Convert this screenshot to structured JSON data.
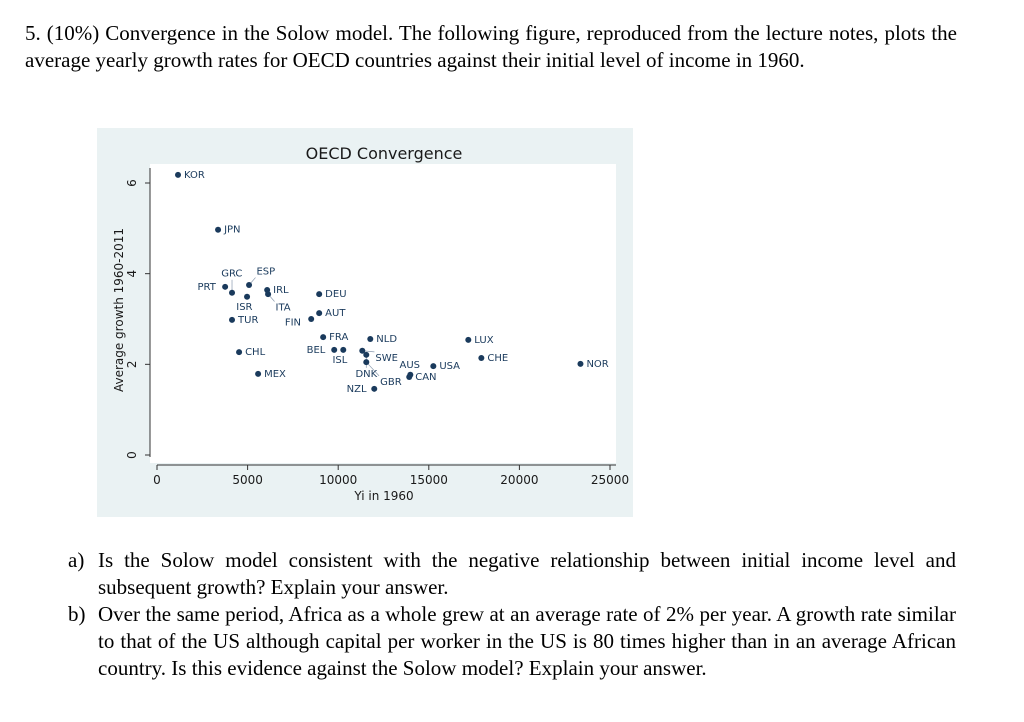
{
  "intro": "5. (10%) Convergence in the Solow model. The following figure, reproduced from the lecture notes, plots the average yearly growth rates for OECD countries against their initial level of income in 1960.",
  "questions": [
    {
      "label": "a)",
      "text": "Is the Solow model consistent with the negative relationship between initial income level and subsequent growth? Explain your answer."
    },
    {
      "label": "b)",
      "text": "Over the same period, Africa as a whole grew at an average rate of 2% per year. A growth rate similar to that of the US although capital per worker in the US is 80 times higher than in an average African country. Is this evidence against the Solow model? Explain your answer."
    }
  ],
  "colors": {
    "figure_bg": "#eaf2f3",
    "marker": "#1a3a5c"
  },
  "chart_data": {
    "type": "scatter",
    "title": "OECD Convergence",
    "xlabel": "Yi in 1960",
    "ylabel": "Average growth 1960-2011",
    "xlim": [
      0,
      25000
    ],
    "ylim": [
      0,
      6
    ],
    "xticks": [
      "0",
      "5000",
      "10000",
      "15000",
      "20000",
      "25000"
    ],
    "yticks": [
      "0",
      "2",
      "4",
      "6"
    ],
    "grid": false,
    "points": [
      {
        "label": "KOR",
        "x": 1160,
        "y": 6.18
      },
      {
        "label": "JPN",
        "x": 3370,
        "y": 4.97
      },
      {
        "label": "PRT",
        "x": 3760,
        "y": 3.71
      },
      {
        "label": "GRC",
        "x": 4140,
        "y": 3.58
      },
      {
        "label": "ESP",
        "x": 5080,
        "y": 3.75
      },
      {
        "label": "ISR",
        "x": 4970,
        "y": 3.49
      },
      {
        "label": "IRL",
        "x": 6080,
        "y": 3.64
      },
      {
        "label": "ITA",
        "x": 6130,
        "y": 3.55
      },
      {
        "label": "TUR",
        "x": 4140,
        "y": 2.98
      },
      {
        "label": "CHL",
        "x": 4530,
        "y": 2.27
      },
      {
        "label": "MEX",
        "x": 5580,
        "y": 1.79
      },
      {
        "label": "DEU",
        "x": 8950,
        "y": 3.55
      },
      {
        "label": "AUT",
        "x": 8950,
        "y": 3.13
      },
      {
        "label": "FIN",
        "x": 8510,
        "y": 3.0
      },
      {
        "label": "FRA",
        "x": 9170,
        "y": 2.6
      },
      {
        "label": "NLD",
        "x": 11770,
        "y": 2.56
      },
      {
        "label": "BEL",
        "x": 9780,
        "y": 2.32
      },
      {
        "label": "ISL",
        "x": 10280,
        "y": 2.32
      },
      {
        "label": "SWE",
        "x": 11330,
        "y": 2.3
      },
      {
        "label": "DNK",
        "x": 11550,
        "y": 2.21
      },
      {
        "label": "GBR",
        "x": 11550,
        "y": 2.05
      },
      {
        "label": "USA",
        "x": 15250,
        "y": 1.96
      },
      {
        "label": "AUS",
        "x": 13980,
        "y": 1.77
      },
      {
        "label": "CAN",
        "x": 13920,
        "y": 1.72
      },
      {
        "label": "NZL",
        "x": 11990,
        "y": 1.46
      },
      {
        "label": "LUX",
        "x": 17180,
        "y": 2.54
      },
      {
        "label": "CHE",
        "x": 17900,
        "y": 2.14
      },
      {
        "label": "NOR",
        "x": 23370,
        "y": 2.01
      }
    ]
  }
}
